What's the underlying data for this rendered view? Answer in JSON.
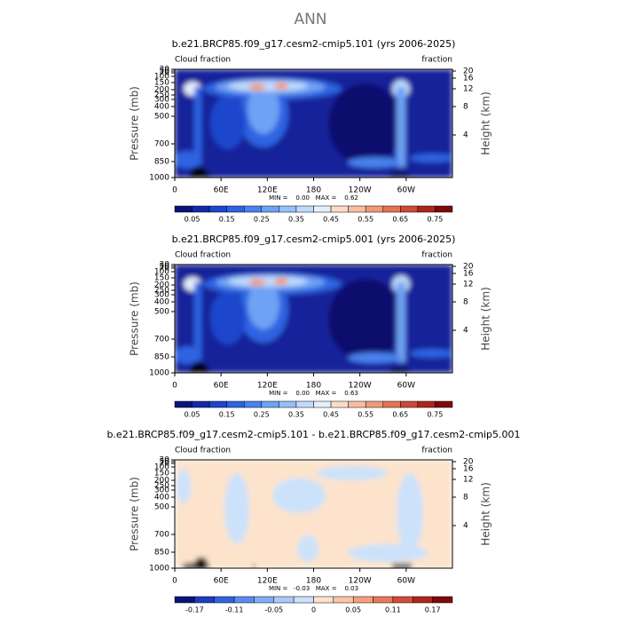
{
  "title": "ANN",
  "axes": {
    "y_label": "Pressure (mb)",
    "y2_label": "Height (km)",
    "yticks": [
      1000,
      850,
      700,
      500,
      400,
      300,
      250,
      200,
      150,
      100,
      70,
      50,
      30
    ],
    "y2ticks": [
      4,
      8,
      12,
      16,
      20
    ],
    "xticks": [
      "0",
      "60E",
      "120E",
      "180",
      "120W",
      "60W"
    ]
  },
  "panels": [
    {
      "title": "b.e21.BRCP85.f09_g17.cesm2-cmip5.101 (yrs 2006-2025)",
      "left_label": "Cloud fraction",
      "right_label": "fraction",
      "stats": "MIN =    0.00   MAX =    0.62",
      "colorbar": {
        "colors": [
          "#0a1478",
          "#1428aa",
          "#1e46cc",
          "#2d64e2",
          "#4882ee",
          "#6ea2f4",
          "#96c0f8",
          "#c0dafb",
          "#e4eefc",
          "#fcdcc8",
          "#f8bea0",
          "#f09a78",
          "#e27456",
          "#cc4a38",
          "#ac261c",
          "#7e0a0a"
        ],
        "labels": [
          0.05,
          0.15,
          0.25,
          0.35,
          0.45,
          0.55,
          0.65,
          0.75
        ]
      }
    },
    {
      "title": "b.e21.BRCP85.f09_g17.cesm2-cmip5.001 (yrs 2006-2025)",
      "left_label": "Cloud fraction",
      "right_label": "fraction",
      "stats": "MIN =    0.00   MAX =    0.63",
      "colorbar": {
        "colors": [
          "#0a1478",
          "#1428aa",
          "#1e46cc",
          "#2d64e2",
          "#4882ee",
          "#6ea2f4",
          "#96c0f8",
          "#c0dafb",
          "#e4eefc",
          "#fcdcc8",
          "#f8bea0",
          "#f09a78",
          "#e27456",
          "#cc4a38",
          "#ac261c",
          "#7e0a0a"
        ],
        "labels": [
          0.05,
          0.15,
          0.25,
          0.35,
          0.45,
          0.55,
          0.65,
          0.75
        ]
      }
    },
    {
      "title": "b.e21.BRCP85.f09_g17.cesm2-cmip5.101 - b.e21.BRCP85.f09_g17.cesm2-cmip5.001",
      "left_label": "Cloud fraction",
      "right_label": "fraction",
      "stats": "MIN =   -0.03   MAX =    0.03",
      "colorbar": {
        "colors": [
          "#0a1478",
          "#1e3cbe",
          "#3264e0",
          "#5a8cf0",
          "#82aef6",
          "#aacaf9",
          "#cce2fb",
          "#fde3cc",
          "#fac6a4",
          "#f4a07c",
          "#e87858",
          "#d24c38",
          "#b0261c",
          "#7e0a0a"
        ],
        "labels": [
          -0.17,
          -0.11,
          -0.05,
          0,
          0.05,
          0.11,
          0.17
        ]
      }
    }
  ]
}
